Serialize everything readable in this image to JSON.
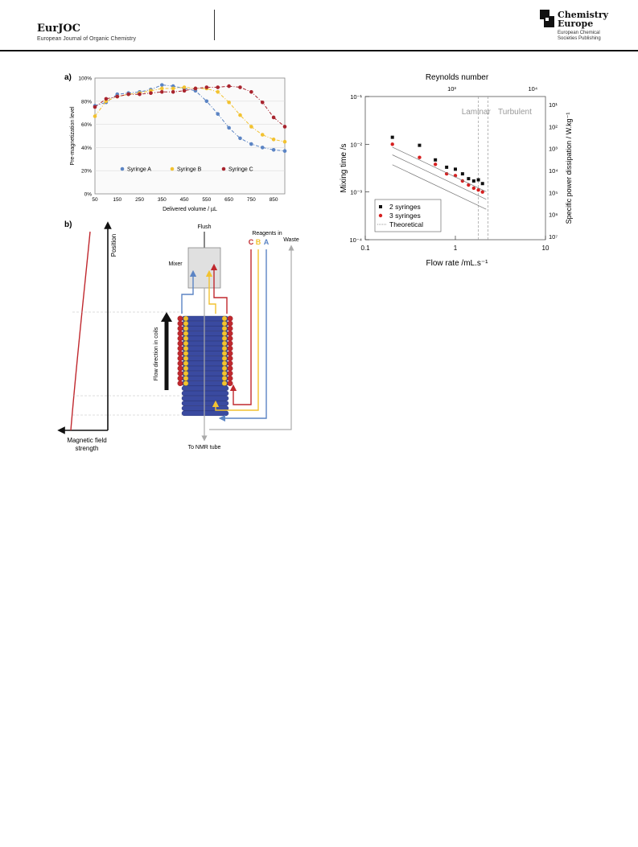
{
  "header": {
    "journal": "EurJOC",
    "journal_full": "European Journal of Organic Chemistry",
    "publisher_line1": "Chemistry",
    "publisher_line2": "Europe",
    "publisher_sub1": "European Chemical",
    "publisher_sub2": "Societies Publishing",
    "logo_icon": "chemistry-europe-logo-icon"
  },
  "panel_a": {
    "label": "a)",
    "chart_data": {
      "type": "line",
      "xlabel": "Delivered volume / µL",
      "ylabel": "Pre-magnetization level",
      "x_ticks": [
        50,
        150,
        250,
        350,
        450,
        550,
        650,
        750,
        850
      ],
      "y_ticks": [
        "0%",
        "20%",
        "40%",
        "60%",
        "80%",
        "100%"
      ],
      "xlim": [
        50,
        900
      ],
      "ylim": [
        0,
        100
      ],
      "grid": true,
      "legend_position": "bottom-center",
      "series": [
        {
          "name": "Syringe A",
          "color": "#5b84c4",
          "x": [
            50,
            100,
            150,
            200,
            250,
            300,
            350,
            400,
            450,
            500,
            550,
            600,
            650,
            700,
            750,
            800,
            850,
            900
          ],
          "y": [
            76,
            79,
            86,
            87,
            88,
            90,
            94,
            93,
            91,
            89,
            80,
            69,
            57,
            48,
            43,
            40,
            38,
            37
          ]
        },
        {
          "name": "Syringe B",
          "color": "#f2c230",
          "x": [
            50,
            100,
            150,
            200,
            250,
            300,
            350,
            400,
            450,
            500,
            550,
            600,
            650,
            700,
            750,
            800,
            850,
            900
          ],
          "y": [
            67,
            80,
            84,
            86,
            87,
            89,
            91,
            91,
            92,
            91,
            91,
            88,
            79,
            68,
            58,
            51,
            47,
            45
          ]
        },
        {
          "name": "Syringe C",
          "color": "#a8242e",
          "x": [
            50,
            100,
            150,
            200,
            250,
            300,
            350,
            400,
            450,
            500,
            550,
            600,
            650,
            700,
            750,
            800,
            850,
            900
          ],
          "y": [
            75,
            82,
            84,
            86,
            86,
            87,
            88,
            88,
            89,
            91,
            92,
            92,
            93,
            92,
            88,
            79,
            66,
            58
          ]
        }
      ]
    }
  },
  "panel_c": {
    "chart_data": {
      "type": "scatter",
      "xlabel": "Flow rate /mL.s⁻¹",
      "ylabel": "Mixing time /s",
      "top_label": "Reynolds number",
      "right_label": "Specific power dissipation / W.kg⁻¹",
      "x_scale": "log",
      "y_scale": "log",
      "xlim": [
        0.1,
        10
      ],
      "ylim": [
        0.0001,
        0.1
      ],
      "x_ticks": [
        "0.1",
        "1",
        "10"
      ],
      "y_ticks": [
        "10⁻¹",
        "10⁻²",
        "10⁻³",
        "10⁻⁴"
      ],
      "top_ticks": [
        "10³",
        "10⁴"
      ],
      "right_ticks": [
        "10¹",
        "10²",
        "10³",
        "10⁴",
        "10⁵",
        "10⁶",
        "10⁷"
      ],
      "regions": [
        {
          "label": "Laminar",
          "x_boundary": 1.8
        },
        {
          "label": "Turbulent",
          "x_boundary": 2.3
        }
      ],
      "legend_position": "bottom-left",
      "series": [
        {
          "name": "2 syringes",
          "color": "#111111",
          "marker": "square",
          "x": [
            0.2,
            0.4,
            0.6,
            0.8,
            1.0,
            1.2,
            1.4,
            1.6,
            1.8,
            2.0
          ],
          "y": [
            0.014,
            0.0095,
            0.0047,
            0.0033,
            0.003,
            0.0024,
            0.0019,
            0.0017,
            0.0018,
            0.0015
          ]
        },
        {
          "name": "3 syringes",
          "color": "#d62020",
          "marker": "circle",
          "x": [
            0.2,
            0.4,
            0.6,
            0.8,
            1.0,
            1.2,
            1.4,
            1.6,
            1.8,
            2.0
          ],
          "y": [
            0.01,
            0.0053,
            0.0038,
            0.0024,
            0.0022,
            0.0017,
            0.0014,
            0.0012,
            0.0011,
            0.001
          ]
        },
        {
          "name": "Theoretical",
          "color": "#777777",
          "marker": "dotted-line",
          "x": [
            0.2,
            2.2
          ],
          "y": [
            0.006,
            0.0007
          ]
        }
      ]
    }
  },
  "panel_b": {
    "label": "b)",
    "position_label": "Position",
    "field_label_1": "Magnetic field",
    "field_label_2": "strength",
    "flow_label": "Flow direction in coils",
    "flush_label": "Flush",
    "mixer_label": "Mixer",
    "reagents_label": "Reagents in",
    "reagent_c": "C",
    "reagent_b": "B",
    "reagent_a": "A",
    "waste_label": "Waste",
    "nmr_label": "To NMR tube",
    "colors": {
      "a": "#5b84c4",
      "b": "#f2c230",
      "c": "#c0282e",
      "coil": "#3a4aa0"
    }
  }
}
